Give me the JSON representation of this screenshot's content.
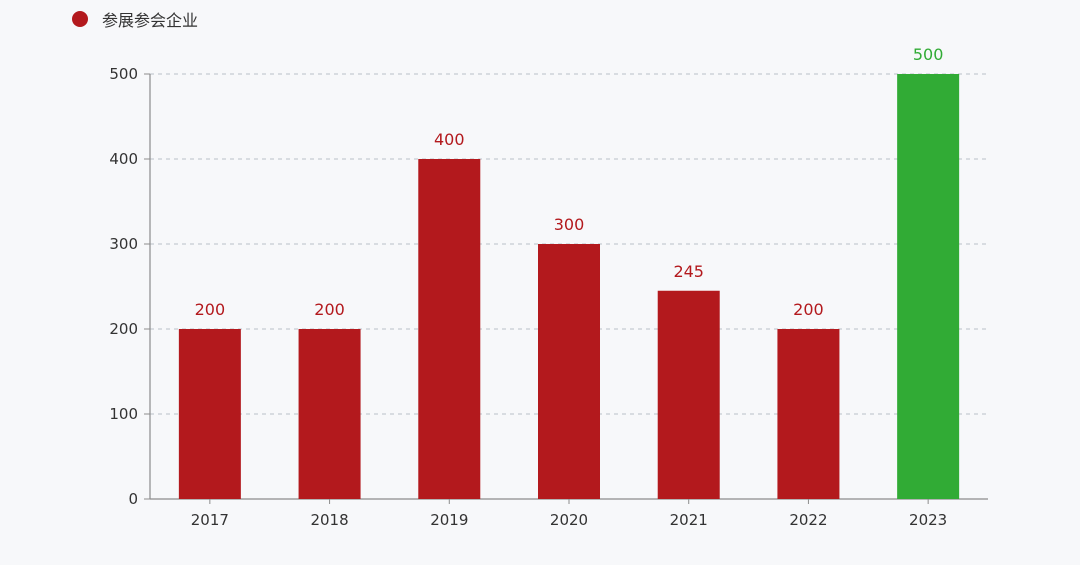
{
  "legend": {
    "label": "参展参会企业",
    "color": "#b3191d"
  },
  "chart_data": {
    "type": "bar",
    "categories": [
      "2017",
      "2018",
      "2019",
      "2020",
      "2021",
      "2022",
      "2023"
    ],
    "series": [
      {
        "name": "参展参会企业",
        "values": [
          200,
          200,
          400,
          300,
          245,
          200,
          500
        ]
      }
    ],
    "bar_colors": [
      "#b3191d",
      "#b3191d",
      "#b3191d",
      "#b3191d",
      "#b3191d",
      "#b3191d",
      "#31ab35"
    ],
    "label_colors": [
      "#b3191d",
      "#b3191d",
      "#b3191d",
      "#b3191d",
      "#b3191d",
      "#b3191d",
      "#31ab35"
    ],
    "ylim": [
      0,
      500
    ],
    "yticks": [
      0,
      100,
      200,
      300,
      400,
      500
    ],
    "grid": true,
    "legend_position": "top-left",
    "title": "",
    "xlabel": "",
    "ylabel": ""
  }
}
